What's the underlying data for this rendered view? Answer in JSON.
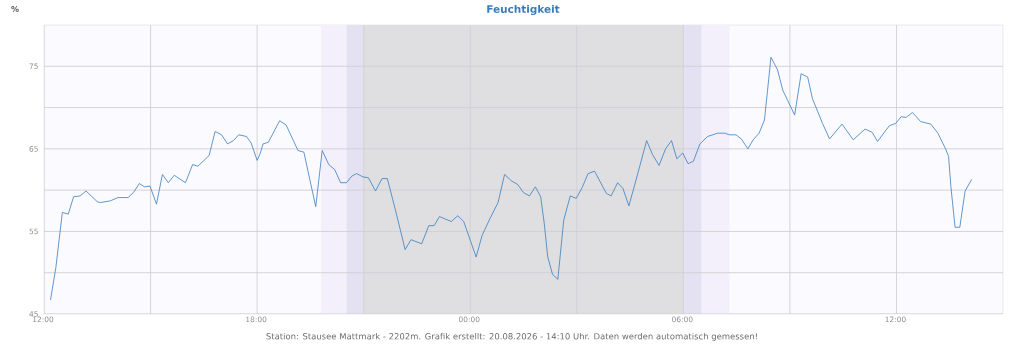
{
  "chart_data": {
    "type": "line",
    "title": "Feuchtigkeit",
    "ylabel": "%",
    "annotations": [
      "Station: Stausee Mattmark - 2202m. Grafik erstellt: 20.08.2026 - 14:10 Uhr. Daten werden automatisch gemessen!"
    ],
    "x": [
      "2026-08-19T12:11",
      "2026-08-19T12:20",
      "2026-08-19T12:31",
      "2026-08-19T12:41",
      "2026-08-19T12:50",
      "2026-08-19T13:01",
      "2026-08-19T13:11",
      "2026-08-19T13:30",
      "2026-08-19T13:35",
      "2026-08-19T13:52",
      "2026-08-19T14:05",
      "2026-08-19T14:22",
      "2026-08-19T14:31",
      "2026-08-19T14:41",
      "2026-08-19T14:50",
      "2026-08-19T14:59",
      "2026-08-19T15:10",
      "2026-08-19T15:20",
      "2026-08-19T15:30",
      "2026-08-19T15:40",
      "2026-08-19T15:59",
      "2026-08-19T16:11",
      "2026-08-19T16:20",
      "2026-08-19T16:39",
      "2026-08-19T16:49",
      "2026-08-19T17:00",
      "2026-08-19T17:10",
      "2026-08-19T17:20",
      "2026-08-19T17:29",
      "2026-08-19T17:42",
      "2026-08-19T17:50",
      "2026-08-19T18:00",
      "2026-08-19T18:05",
      "2026-08-19T18:10",
      "2026-08-19T18:19",
      "2026-08-19T18:38",
      "2026-08-19T18:49",
      "2026-08-19T19:09",
      "2026-08-19T19:19",
      "2026-08-19T19:39",
      "2026-08-19T19:50",
      "2026-08-19T20:01",
      "2026-08-19T20:11",
      "2026-08-19T20:21",
      "2026-08-19T20:31",
      "2026-08-19T20:40",
      "2026-08-19T20:48",
      "2026-08-19T20:59",
      "2026-08-19T21:08",
      "2026-08-19T21:20",
      "2026-08-19T21:31",
      "2026-08-19T21:40",
      "2026-08-19T21:55",
      "2026-08-19T22:10",
      "2026-08-19T22:20",
      "2026-08-19T22:38",
      "2026-08-19T22:50",
      "2026-08-19T22:59",
      "2026-08-19T23:08",
      "2026-08-19T23:28",
      "2026-08-19T23:39",
      "2026-08-19T23:49",
      "2026-08-20T00:10",
      "2026-08-20T00:20",
      "2026-08-20T00:33",
      "2026-08-20T00:47",
      "2026-08-20T00:58",
      "2026-08-20T01:10",
      "2026-08-20T01:20",
      "2026-08-20T01:30",
      "2026-08-20T01:40",
      "2026-08-20T01:50",
      "2026-08-20T01:59",
      "2026-08-20T02:05",
      "2026-08-20T02:11",
      "2026-08-20T02:19",
      "2026-08-20T02:28",
      "2026-08-20T02:38",
      "2026-08-20T02:49",
      "2026-08-20T02:59",
      "2026-08-20T03:09",
      "2026-08-20T03:19",
      "2026-08-20T03:30",
      "2026-08-20T03:50",
      "2026-08-20T03:58",
      "2026-08-20T04:09",
      "2026-08-20T04:18",
      "2026-08-20T04:28",
      "2026-08-20T04:40",
      "2026-08-20T04:58",
      "2026-08-20T05:08",
      "2026-08-20T05:19",
      "2026-08-20T05:30",
      "2026-08-20T05:40",
      "2026-08-20T05:49",
      "2026-08-20T05:59",
      "2026-08-20T06:08",
      "2026-08-20T06:17",
      "2026-08-20T06:28",
      "2026-08-20T06:41",
      "2026-08-20T06:58",
      "2026-08-20T07:10",
      "2026-08-20T07:18",
      "2026-08-20T07:29",
      "2026-08-20T07:38",
      "2026-08-20T07:49",
      "2026-08-20T07:58",
      "2026-08-20T08:08",
      "2026-08-20T08:17",
      "2026-08-20T08:22",
      "2026-08-20T08:28",
      "2026-08-20T08:39",
      "2026-08-20T08:48",
      "2026-08-20T09:08",
      "2026-08-20T09:19",
      "2026-08-20T09:30",
      "2026-08-20T09:38",
      "2026-08-20T09:55",
      "2026-08-20T10:07",
      "2026-08-20T10:28",
      "2026-08-20T10:47",
      "2026-08-20T11:07",
      "2026-08-20T11:19",
      "2026-08-20T11:28",
      "2026-08-20T11:48",
      "2026-08-20T11:59",
      "2026-08-20T12:08",
      "2026-08-20T12:16",
      "2026-08-20T12:27",
      "2026-08-20T12:41",
      "2026-08-20T12:58",
      "2026-08-20T13:10",
      "2026-08-20T13:23",
      "2026-08-20T13:28",
      "2026-08-20T13:32",
      "2026-08-20T13:39",
      "2026-08-20T13:47",
      "2026-08-20T13:56",
      "2026-08-20T14:07"
    ],
    "series": [
      {
        "color": "#3a7dbf",
        "values": [
          46.7,
          50.6,
          57.3,
          57.1,
          59.2,
          59.3,
          59.9,
          58.6,
          58.5,
          58.7,
          59.1,
          59.1,
          59.7,
          60.8,
          60.4,
          60.5,
          58.3,
          61.9,
          60.9,
          61.8,
          60.9,
          63.1,
          62.9,
          64.2,
          67.1,
          66.7,
          65.6,
          66.0,
          66.7,
          66.5,
          65.7,
          63.6,
          64.4,
          65.6,
          65.8,
          68.4,
          67.9,
          64.8,
          64.6,
          58.0,
          64.8,
          63.1,
          62.5,
          60.9,
          60.9,
          61.7,
          62.0,
          61.6,
          61.5,
          59.9,
          61.4,
          61.4,
          57.2,
          52.8,
          54.0,
          53.5,
          55.7,
          55.7,
          56.8,
          56.2,
          56.9,
          56.2,
          51.9,
          54.5,
          56.5,
          58.5,
          61.9,
          61.1,
          60.7,
          59.7,
          59.3,
          60.4,
          59.2,
          56.0,
          51.9,
          49.8,
          49.2,
          56.4,
          59.3,
          59.0,
          60.3,
          62.0,
          62.3,
          59.6,
          59.3,
          60.9,
          60.2,
          58.1,
          61.2,
          66.0,
          64.3,
          63.0,
          65.0,
          66.0,
          63.8,
          64.5,
          63.2,
          63.5,
          65.6,
          66.5,
          66.9,
          66.9,
          66.7,
          66.7,
          66.2,
          65.0,
          66.1,
          66.9,
          68.5,
          71.9,
          76.1,
          74.6,
          72.1,
          69.1,
          74.1,
          73.7,
          71.1,
          68.1,
          66.2,
          68.0,
          66.1,
          67.4,
          67.0,
          65.9,
          67.8,
          68.1,
          68.9,
          68.8,
          69.4,
          68.3,
          68.0,
          66.9,
          65.0,
          64.1,
          60.4,
          55.5,
          55.5,
          59.9,
          61.3
        ]
      }
    ],
    "xlim": [
      "2026-08-19T12:00",
      "2026-08-20T15:00"
    ],
    "ylim": [
      45,
      80
    ],
    "xticks": [
      {
        "value": "2026-08-19T12:00",
        "label": "12:00"
      },
      {
        "value": "2026-08-19T15:00",
        "label": null
      },
      {
        "value": "2026-08-19T18:00",
        "label": "18:00"
      },
      {
        "value": "2026-08-19T21:00",
        "label": null
      },
      {
        "value": "2026-08-20T00:00",
        "label": "00:00"
      },
      {
        "value": "2026-08-20T03:00",
        "label": null
      },
      {
        "value": "2026-08-20T06:00",
        "label": "06:00"
      },
      {
        "value": "2026-08-20T09:00",
        "label": null
      },
      {
        "value": "2026-08-20T12:00",
        "label": "12:00"
      }
    ],
    "yticks": [
      45,
      {
        "value": 50,
        "label": null
      },
      55,
      {
        "value": 60,
        "label": null
      },
      65,
      {
        "value": 70,
        "label": null
      },
      75
    ],
    "bands": [
      {
        "axis": "x",
        "from": "2026-08-19T19:48",
        "to": "2026-08-19T20:31",
        "color": "#f3effb"
      },
      {
        "axis": "x",
        "from": "2026-08-19T20:31",
        "to": "2026-08-19T21:00",
        "color": "#e4e2f2"
      },
      {
        "axis": "x",
        "from": "2026-08-19T21:00",
        "to": "2026-08-20T06:00",
        "color": "#dfdfe2"
      },
      {
        "axis": "x",
        "from": "2026-08-20T06:00",
        "to": "2026-08-20T06:31",
        "color": "#e4e2f2"
      },
      {
        "axis": "x",
        "from": "2026-08-20T06:31",
        "to": "2026-08-20T07:18",
        "color": "#f3effb"
      }
    ],
    "grid": true,
    "marker": "none",
    "line_style": "solid"
  }
}
